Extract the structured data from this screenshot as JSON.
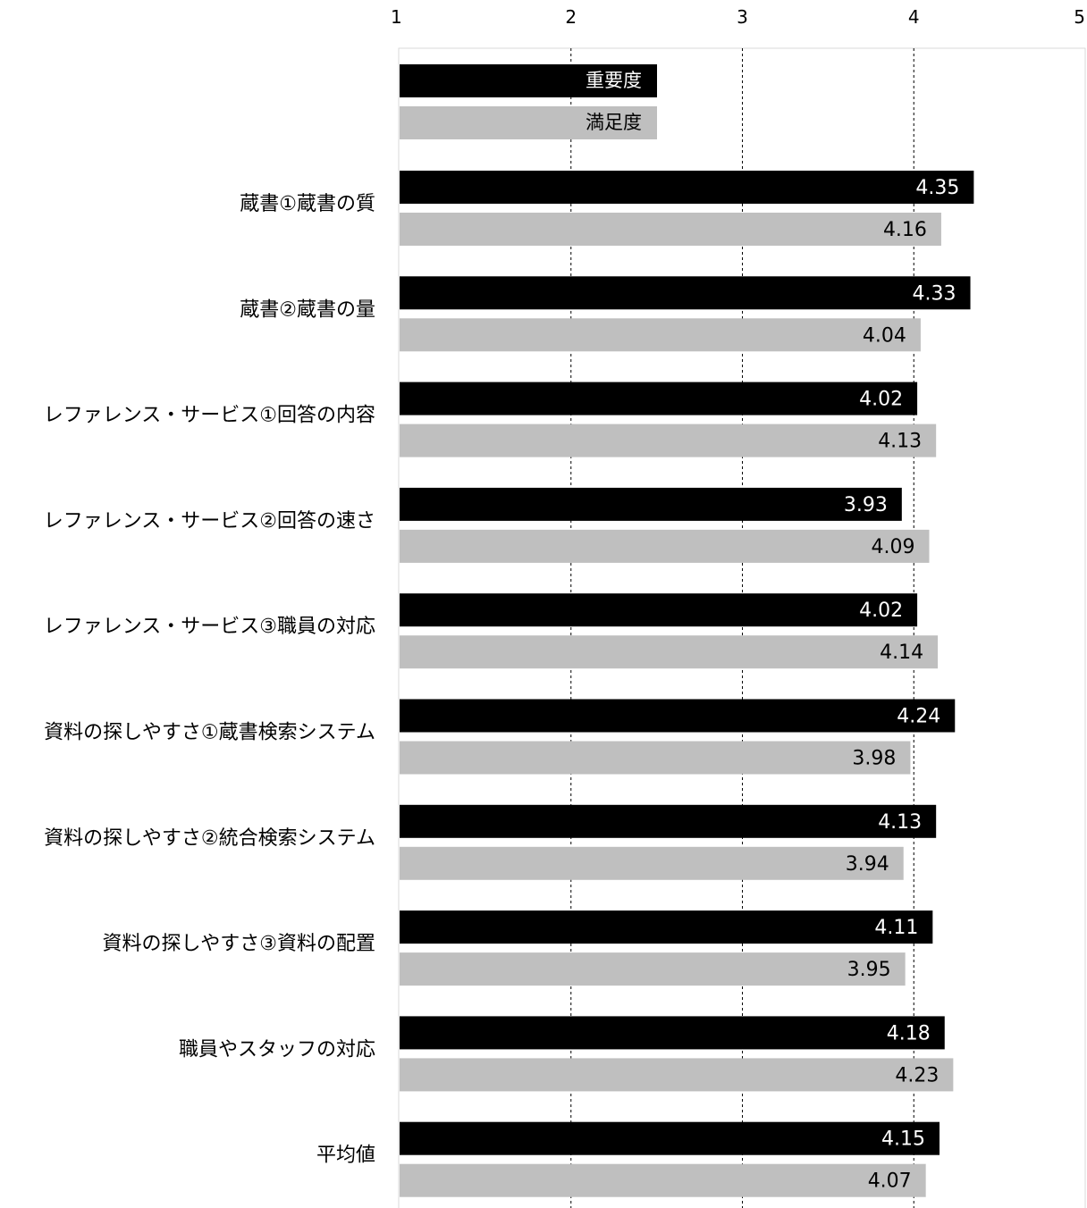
{
  "chart_data": {
    "type": "bar",
    "orientation": "horizontal",
    "xlim": [
      1,
      5
    ],
    "ticks": [
      "1",
      "2",
      "3",
      "4",
      "5"
    ],
    "grid": "dashed vertical at 2, 3, 4",
    "legend_position": "top-left inside plot",
    "legend": [
      {
        "name": "重要度",
        "color": "#000000",
        "text_color": "#ffffff"
      },
      {
        "name": "満足度",
        "color": "#bfbfbf",
        "text_color": "#000000"
      }
    ],
    "categories": [
      "蔵書①蔵書の質",
      "蔵書②蔵書の量",
      "レファレンス・サービス①回答の内容",
      "レファレンス・サービス②回答の速さ",
      "レファレンス・サービス③職員の対応",
      "資料の探しやすさ①蔵書検索システム",
      "資料の探しやすさ②統合検索システム",
      "資料の探しやすさ③資料の配置",
      "職員やスタッフの対応",
      "平均値"
    ],
    "series": [
      {
        "name": "重要度",
        "color": "#000000",
        "label_color": "#ffffff",
        "values": [
          4.35,
          4.33,
          4.02,
          3.93,
          4.02,
          4.24,
          4.13,
          4.11,
          4.18,
          4.15
        ],
        "labels": [
          "4.35",
          "4.33",
          "4.02",
          "3.93",
          "4.02",
          "4.24",
          "4.13",
          "4.11",
          "4.18",
          "4.15"
        ]
      },
      {
        "name": "満足度",
        "color": "#bfbfbf",
        "label_color": "#000000",
        "values": [
          4.16,
          4.04,
          4.13,
          4.09,
          4.14,
          3.98,
          3.94,
          3.95,
          4.23,
          4.07
        ],
        "labels": [
          "4.16",
          "4.04",
          "4.13",
          "4.09",
          "4.14",
          "3.98",
          "3.94",
          "3.95",
          "4.23",
          "4.07"
        ]
      }
    ]
  }
}
